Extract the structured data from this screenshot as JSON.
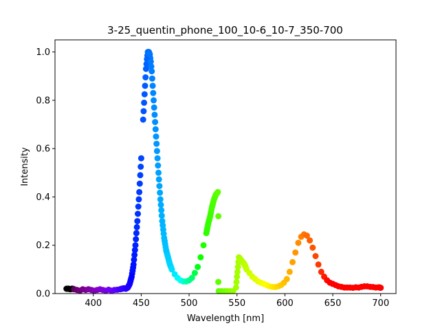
{
  "chart_data": {
    "type": "scatter",
    "title": "3-25_quentin_phone_100_10-6_10-7_350-700",
    "xlabel": "Wavelength [nm]",
    "ylabel": "Intensity",
    "xlim": [
      360,
      716
    ],
    "ylim": [
      0,
      1.05
    ],
    "xticks": [
      "400",
      "450",
      "500",
      "550",
      "600",
      "650",
      "700"
    ],
    "yticks": [
      "0.0",
      "0.2",
      "0.4",
      "0.6",
      "0.8",
      "1.0"
    ],
    "grid": false,
    "legend": "none",
    "color_map": "wavelength-to-visible-color",
    "series": [
      {
        "points": [
          [
            372,
            0.02
          ],
          [
            374,
            0.02
          ],
          [
            376,
            0.018
          ],
          [
            378,
            0.02
          ],
          [
            380,
            0.018
          ],
          [
            383,
            0.015
          ],
          [
            386,
            0.012
          ],
          [
            389,
            0.018
          ],
          [
            392,
            0.015
          ],
          [
            395,
            0.018
          ],
          [
            398,
            0.015
          ],
          [
            401,
            0.012
          ],
          [
            404,
            0.015
          ],
          [
            407,
            0.018
          ],
          [
            410,
            0.015
          ],
          [
            413,
            0.012
          ],
          [
            416,
            0.016
          ],
          [
            419,
            0.012
          ],
          [
            422,
            0.015
          ],
          [
            425,
            0.016
          ],
          [
            428,
            0.018
          ],
          [
            430,
            0.02
          ],
          [
            432,
            0.022
          ],
          [
            434,
            0.02
          ],
          [
            436,
            0.025
          ],
          [
            438,
            0.04
          ],
          [
            440,
            0.07
          ],
          [
            442,
            0.12
          ],
          [
            444,
            0.2
          ],
          [
            446,
            0.3
          ],
          [
            448,
            0.42
          ],
          [
            450,
            0.56
          ],
          [
            452,
            0.72
          ],
          [
            454,
            0.86
          ],
          [
            455,
            0.93
          ],
          [
            456,
            0.97
          ],
          [
            457,
            1.0
          ],
          [
            458,
            1.0
          ],
          [
            459,
            0.99
          ],
          [
            460,
            0.96
          ],
          [
            461,
            0.92
          ],
          [
            462,
            0.86
          ],
          [
            464,
            0.74
          ],
          [
            466,
            0.62
          ],
          [
            468,
            0.5
          ],
          [
            470,
            0.39
          ],
          [
            472,
            0.3
          ],
          [
            474,
            0.23
          ],
          [
            476,
            0.18
          ],
          [
            478,
            0.15
          ],
          [
            480,
            0.12
          ],
          [
            482,
            0.1
          ],
          [
            485,
            0.08
          ],
          [
            488,
            0.065
          ],
          [
            491,
            0.055
          ],
          [
            494,
            0.05
          ],
          [
            497,
            0.05
          ],
          [
            500,
            0.055
          ],
          [
            503,
            0.065
          ],
          [
            506,
            0.085
          ],
          [
            509,
            0.11
          ],
          [
            512,
            0.15
          ],
          [
            515,
            0.2
          ],
          [
            518,
            0.25
          ],
          [
            520,
            0.29
          ],
          [
            522,
            0.32
          ],
          [
            524,
            0.36
          ],
          [
            526,
            0.39
          ],
          [
            528,
            0.41
          ],
          [
            530,
            0.42
          ],
          [
            530.5,
            0.32
          ],
          [
            530.5,
            0.048
          ],
          [
            531,
            0.01
          ],
          [
            534,
            0.01
          ],
          [
            537,
            0.01
          ],
          [
            540,
            0.01
          ],
          [
            543,
            0.01
          ],
          [
            546,
            0.01
          ],
          [
            549,
            0.025
          ],
          [
            550,
            0.07
          ],
          [
            551,
            0.11
          ],
          [
            552,
            0.15
          ],
          [
            554,
            0.14
          ],
          [
            556,
            0.13
          ],
          [
            558,
            0.12
          ],
          [
            560,
            0.1
          ],
          [
            563,
            0.085
          ],
          [
            566,
            0.07
          ],
          [
            569,
            0.06
          ],
          [
            572,
            0.05
          ],
          [
            575,
            0.045
          ],
          [
            578,
            0.04
          ],
          [
            581,
            0.035
          ],
          [
            584,
            0.03
          ],
          [
            587,
            0.028
          ],
          [
            590,
            0.027
          ],
          [
            593,
            0.03
          ],
          [
            596,
            0.035
          ],
          [
            599,
            0.045
          ],
          [
            602,
            0.06
          ],
          [
            605,
            0.09
          ],
          [
            608,
            0.13
          ],
          [
            611,
            0.17
          ],
          [
            614,
            0.21
          ],
          [
            617,
            0.235
          ],
          [
            620,
            0.245
          ],
          [
            623,
            0.24
          ],
          [
            626,
            0.22
          ],
          [
            629,
            0.19
          ],
          [
            632,
            0.155
          ],
          [
            635,
            0.12
          ],
          [
            638,
            0.09
          ],
          [
            641,
            0.07
          ],
          [
            644,
            0.055
          ],
          [
            647,
            0.045
          ],
          [
            650,
            0.04
          ],
          [
            653,
            0.035
          ],
          [
            656,
            0.03
          ],
          [
            659,
            0.028
          ],
          [
            662,
            0.025
          ],
          [
            665,
            0.025
          ],
          [
            668,
            0.025
          ],
          [
            671,
            0.024
          ],
          [
            674,
            0.026
          ],
          [
            677,
            0.025
          ],
          [
            680,
            0.028
          ],
          [
            683,
            0.03
          ],
          [
            686,
            0.03
          ],
          [
            689,
            0.028
          ],
          [
            692,
            0.027
          ],
          [
            695,
            0.025
          ],
          [
            698,
            0.026
          ],
          [
            700,
            0.024
          ]
        ]
      }
    ]
  }
}
